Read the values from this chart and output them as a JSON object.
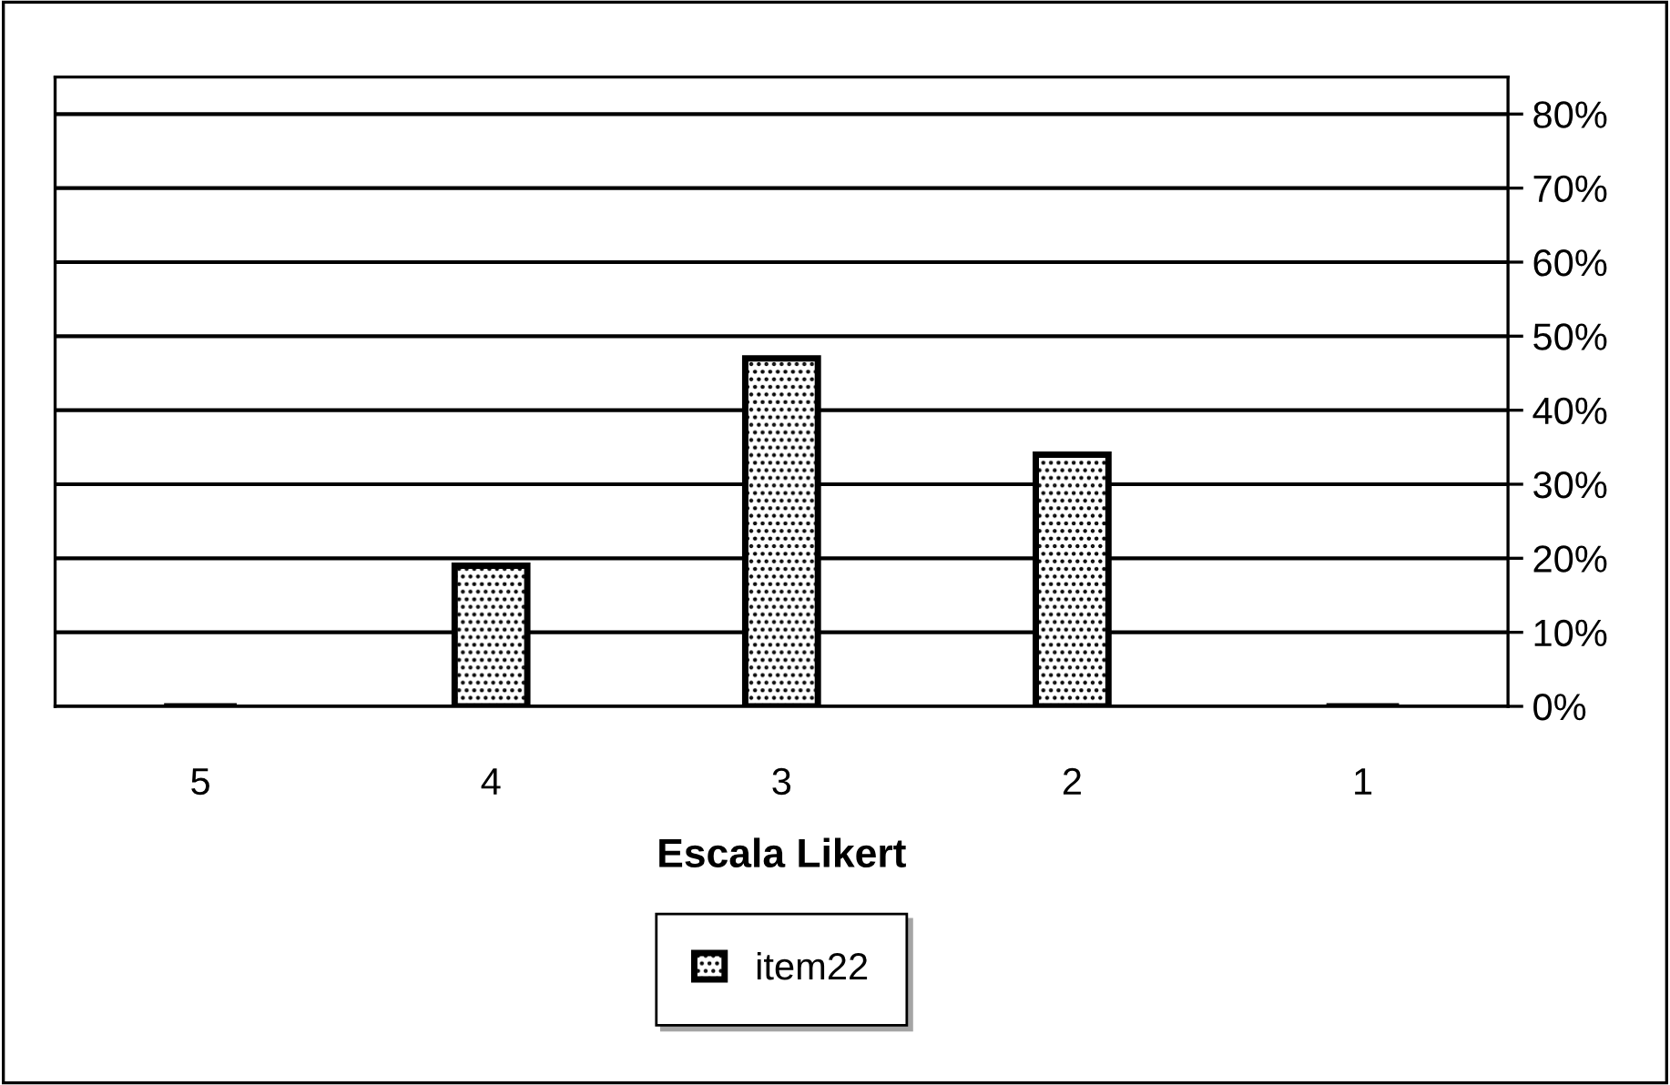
{
  "chart_data": {
    "type": "bar",
    "xlabel": "Escala Likert",
    "categories": [
      "5",
      "4",
      "3",
      "2",
      "1"
    ],
    "series": [
      {
        "name": "item22",
        "color": "#000000",
        "values": [
          0,
          19,
          47,
          34,
          0
        ]
      }
    ],
    "ylim": [
      0,
      85
    ],
    "yticks": [
      {
        "value": 0,
        "label": "0%"
      },
      {
        "value": 10,
        "label": "10%"
      },
      {
        "value": 20,
        "label": "20%"
      },
      {
        "value": 30,
        "label": "30%"
      },
      {
        "value": 40,
        "label": "40%"
      },
      {
        "value": 50,
        "label": "50%"
      },
      {
        "value": 60,
        "label": "60%"
      },
      {
        "value": 70,
        "label": "70%"
      },
      {
        "value": 80,
        "label": "80%"
      }
    ],
    "grid": "y",
    "legend": "bottom"
  }
}
